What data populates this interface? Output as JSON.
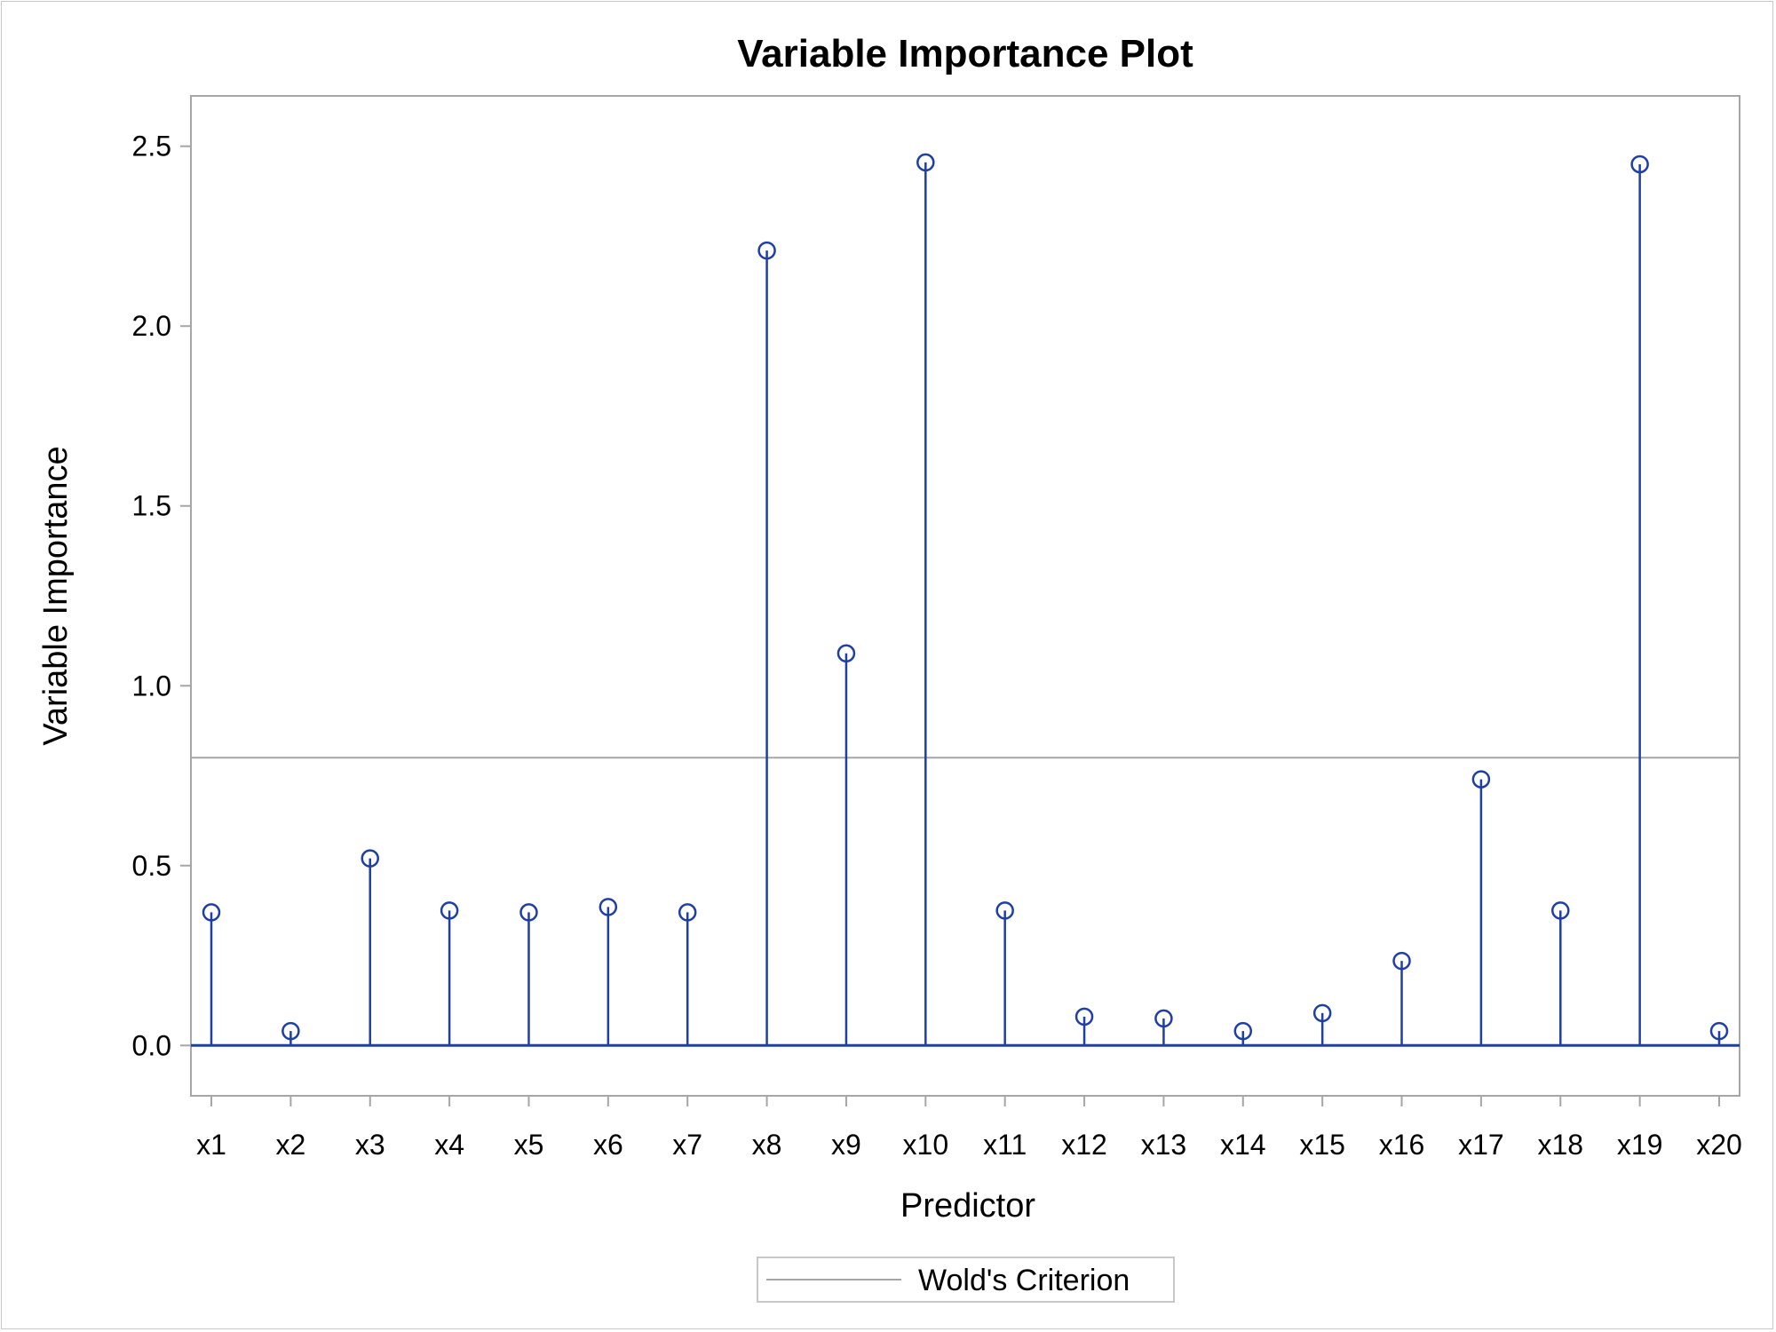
{
  "chart_data": {
    "type": "needle",
    "title": "Variable Importance Plot",
    "xlabel": "Predictor",
    "ylabel": "Variable Importance",
    "ylim": [
      -0.14,
      2.64
    ],
    "yticks": [
      "0.0",
      "0.5",
      "1.0",
      "1.5",
      "2.0",
      "2.5"
    ],
    "categories": [
      "x1",
      "x2",
      "x3",
      "x4",
      "x5",
      "x6",
      "x7",
      "x8",
      "x9",
      "x10",
      "x11",
      "x12",
      "x13",
      "x14",
      "x15",
      "x16",
      "x17",
      "x18",
      "x19",
      "x20"
    ],
    "values": [
      0.37,
      0.04,
      0.52,
      0.375,
      0.37,
      0.385,
      0.37,
      2.21,
      1.09,
      2.455,
      0.375,
      0.08,
      0.075,
      0.04,
      0.09,
      0.235,
      0.74,
      0.375,
      2.45,
      0.04
    ],
    "reference_line": {
      "name": "Wold's Criterion",
      "value": 0.8
    },
    "baseline": 0.0,
    "legend_position": "bottom-center",
    "colors": {
      "series": "#1f3fa3",
      "reference": "#a6a6a6",
      "frame": "#a6a6a6"
    }
  }
}
